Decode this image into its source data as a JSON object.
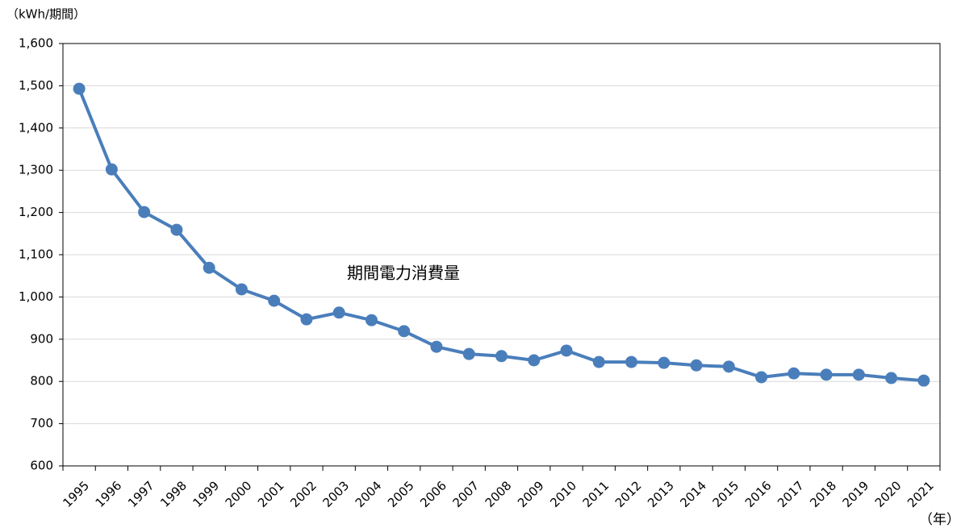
{
  "chart_data": {
    "type": "line",
    "y_label": "（kWh/期間）",
    "x_label": "（年）",
    "annotation": "期間電力消費量",
    "categories": [
      "1995",
      "1996",
      "1997",
      "1998",
      "1999",
      "2000",
      "2001",
      "2002",
      "2003",
      "2004",
      "2005",
      "2006",
      "2007",
      "2008",
      "2009",
      "2010",
      "2011",
      "2012",
      "2013",
      "2014",
      "2015",
      "2016",
      "2017",
      "2018",
      "2019",
      "2020",
      "2021"
    ],
    "values": [
      1493,
      1302,
      1201,
      1159,
      1069,
      1018,
      991,
      947,
      963,
      945,
      919,
      882,
      865,
      860,
      850,
      873,
      846,
      846,
      844,
      838,
      835,
      810,
      819,
      816,
      816,
      808,
      802
    ],
    "color": "#4a7ebb",
    "ylim": [
      600,
      1600
    ],
    "yticks": [
      600,
      700,
      800,
      900,
      {
        "value": 1000,
        "label": "1,000"
      },
      {
        "value": 1100,
        "label": "1,100"
      },
      {
        "value": 1200,
        "label": "1,200"
      },
      {
        "value": 1300,
        "label": "1,300"
      },
      {
        "value": 1400,
        "label": "1,400"
      },
      {
        "value": 1500,
        "label": "1,500"
      },
      {
        "value": 1600,
        "label": "1,600"
      }
    ],
    "grid": true
  }
}
